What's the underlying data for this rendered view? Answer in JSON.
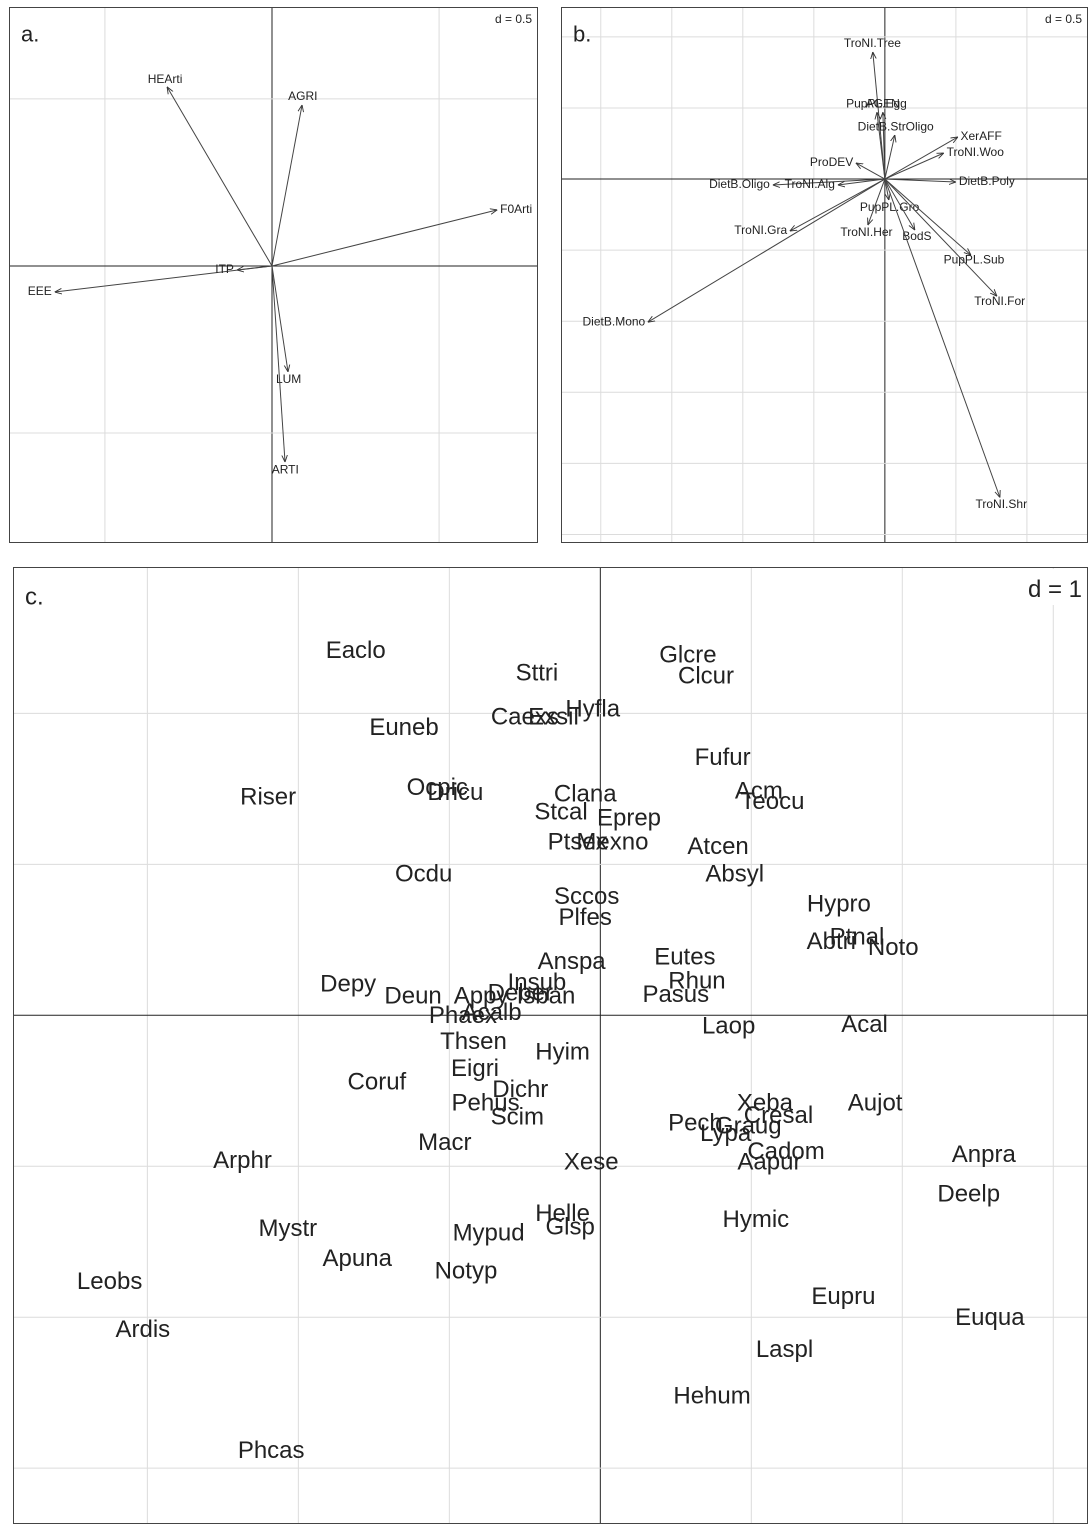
{
  "chart_data": [
    {
      "type": "arrow",
      "panel_label": "a.",
      "scale_label": "d = 0.5",
      "labels": [
        "HEArti",
        "AGRI",
        "F0Arti",
        "EEE",
        "ITP",
        "LUM",
        "ARTI"
      ],
      "x": [
        -0.314,
        0.09,
        0.674,
        -0.65,
        -0.105,
        0.048,
        0.039
      ],
      "y": [
        0.536,
        0.482,
        0.168,
        -0.078,
        -0.012,
        -0.317,
        -0.587
      ],
      "xlim": [
        -0.787,
        0.796
      ],
      "ylim": [
        -0.829,
        0.775
      ],
      "xticks": [
        -0.5,
        0,
        0.5
      ],
      "yticks": [
        -0.5,
        0,
        0.5
      ],
      "grid": true
    },
    {
      "type": "arrow",
      "panel_label": "b.",
      "scale_label": "d = 0.5",
      "labels": [
        "TroNI.Tree",
        "PupPL.Egg",
        "AGEN",
        "DietB.StrOligo",
        "XerAFF",
        "TroNI.Woo",
        "ProDEV",
        "DietB.Poly",
        "DietB.Oligo",
        "TroNI.Alg",
        "PupPL.Gro",
        "TroNI.Gra",
        "TroNI.Her",
        "BodS",
        "PupPL.Sub",
        "TroNI.For",
        "DietB.Mono",
        "TroNI.Shr"
      ],
      "x": [
        -0.085,
        -0.056,
        -0.014,
        0.07,
        0.514,
        0.415,
        -0.204,
        0.5,
        -0.789,
        -0.331,
        0.028,
        -0.669,
        -0.12,
        0.211,
        0.606,
        0.789,
        -1.669,
        0.81
      ],
      "y": [
        0.894,
        0.47,
        0.47,
        0.31,
        0.296,
        0.183,
        0.113,
        -0.021,
        -0.042,
        -0.042,
        -0.148,
        -0.366,
        -0.324,
        -0.359,
        -0.535,
        -0.824,
        -1.007,
        -2.24
      ],
      "xlim": [
        -2.28,
        1.43
      ],
      "ylim": [
        -2.56,
        1.21
      ],
      "xticks": [
        -2,
        -1.5,
        -1,
        -0.5,
        0,
        0.5,
        1
      ],
      "yticks": [
        -2.5,
        -2,
        -1.5,
        -1,
        -0.5,
        0,
        0.5,
        1
      ],
      "grid": true
    },
    {
      "type": "label",
      "panel_label": "c.",
      "scale_label": "d = 1",
      "labels": [
        "Eaclo",
        "Sttri",
        "Glcre",
        "Clcur",
        "Hyfla",
        "Caexs",
        "Exsil",
        "Euneb",
        "Fufur",
        "Riser",
        "Ocpic",
        "Dricu",
        "Clana",
        "Acm",
        "Teocu",
        "Stcal",
        "Eprep",
        "Ptsex",
        "Mexno",
        "Atcen",
        "Ocdu",
        "Absyl",
        "Sccos",
        "Plfes",
        "Hypro",
        "Abtri",
        "Ptnal",
        "Noto",
        "Anspa",
        "Eutes",
        "Rhun",
        "Pasus",
        "Insub",
        "Depy",
        "Deun",
        "Appy",
        "Deber",
        "Isban",
        "Phaex",
        "Acalb",
        "Laop",
        "Acal",
        "Thsen",
        "Hyim",
        "Eigri",
        "Coruf",
        "Dichr",
        "Pehus",
        "Scim",
        "Xeba",
        "Cresal",
        "Aujot",
        "Pech",
        "Graug",
        "Lypa",
        "Macr",
        "Cadom",
        "Aapur",
        "Xese",
        "Arphr",
        "Anpra",
        "Deelp",
        "Helle",
        "Glsp",
        "Hymic",
        "Mystr",
        "Mypud",
        "Apuna",
        "Notyp",
        "Leobs",
        "Eupru",
        "Euqua",
        "Ardis",
        "Laspl",
        "Hehum",
        "Phcas"
      ],
      "x": [
        -1.62,
        -0.42,
        0.58,
        0.7,
        -0.05,
        -0.5,
        -0.31,
        -1.3,
        0.81,
        -2.2,
        -1.08,
        -0.96,
        -0.1,
        1.05,
        1.14,
        -0.26,
        0.19,
        -0.15,
        0.08,
        0.78,
        -1.17,
        0.89,
        -0.09,
        -0.1,
        1.58,
        1.53,
        1.7,
        1.94,
        -0.19,
        0.56,
        0.64,
        0.5,
        -0.42,
        -1.67,
        -1.24,
        -0.79,
        -0.53,
        -0.36,
        -0.91,
        -0.72,
        0.85,
        1.75,
        -0.84,
        -0.25,
        -0.83,
        -1.48,
        -0.53,
        -0.76,
        -0.55,
        1.09,
        1.18,
        1.82,
        0.63,
        0.98,
        0.83,
        -1.03,
        1.23,
        1.12,
        -0.06,
        -2.37,
        2.54,
        2.44,
        -0.25,
        -0.2,
        1.03,
        -2.07,
        -0.74,
        -1.61,
        -0.89,
        -3.25,
        1.61,
        2.58,
        -3.03,
        1.22,
        0.74,
        -2.18
      ],
      "y": [
        2.41,
        2.26,
        2.38,
        2.24,
        2.02,
        1.97,
        1.97,
        1.9,
        1.7,
        1.44,
        1.5,
        1.47,
        1.46,
        1.48,
        1.41,
        1.34,
        1.3,
        1.14,
        1.14,
        1.11,
        0.93,
        0.93,
        0.78,
        0.64,
        0.73,
        0.48,
        0.51,
        0.44,
        0.35,
        0.38,
        0.22,
        0.13,
        0.21,
        0.2,
        0.12,
        0.12,
        0.14,
        0.12,
        -0.01,
        0.01,
        -0.08,
        -0.07,
        -0.18,
        -0.25,
        -0.36,
        -0.45,
        -0.5,
        -0.59,
        -0.68,
        -0.59,
        -0.67,
        -0.59,
        -0.72,
        -0.74,
        -0.79,
        -0.85,
        -0.91,
        -0.98,
        -0.98,
        -0.97,
        -0.93,
        -1.19,
        -1.32,
        -1.41,
        -1.36,
        -1.42,
        -1.45,
        -1.62,
        -1.7,
        -1.77,
        -1.87,
        -2.01,
        -2.09,
        -2.22,
        -2.53,
        -2.89
      ],
      "xlim": [
        -3.89,
        3.23
      ],
      "ylim": [
        -3.37,
        2.97
      ],
      "xticks": [
        -3,
        -2,
        -1,
        0,
        1,
        2,
        3
      ],
      "yticks": [
        -3,
        -2,
        -1,
        0,
        1,
        2
      ],
      "grid": true
    }
  ]
}
